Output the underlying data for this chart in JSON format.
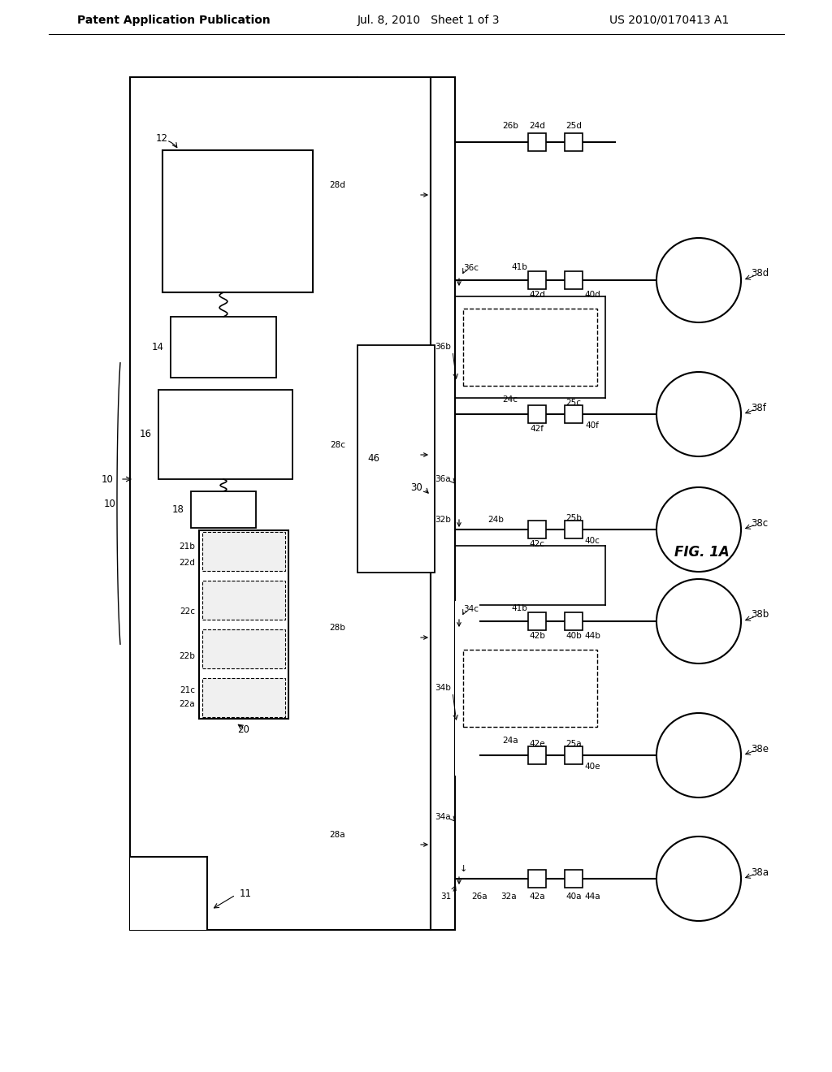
{
  "bg_color": "#ffffff",
  "line_color": "#000000",
  "header_left": "Patent Application Publication",
  "header_mid": "Jul. 8, 2010   Sheet 1 of 3",
  "header_right": "US 2010/0170413 A1",
  "fig_label": "FIG. 1A",
  "header_fontsize": 10,
  "label_fontsize": 8.5,
  "small_fontsize": 7.5,
  "italic_fontsize": 12
}
